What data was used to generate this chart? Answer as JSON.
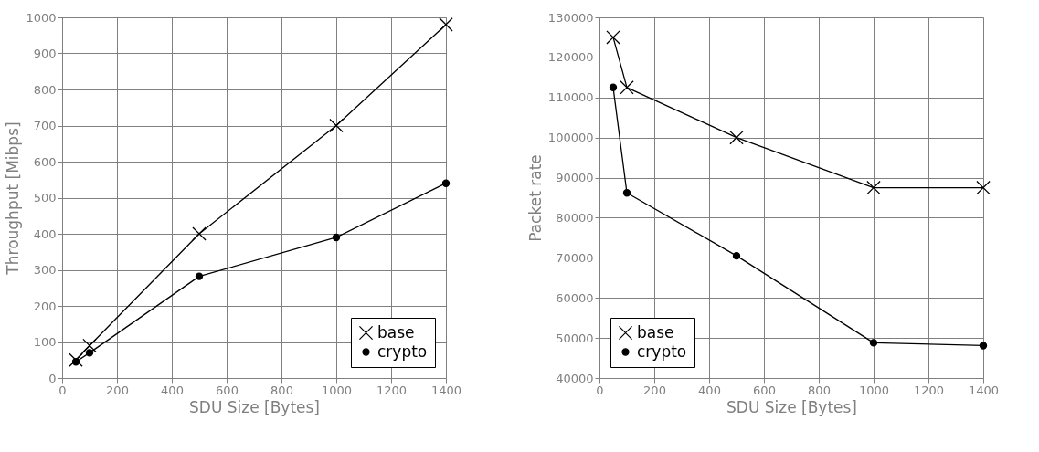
{
  "chart_data": [
    {
      "type": "line",
      "xlabel": "SDU Size [Bytes]",
      "ylabel": "Throughput [Mibps]",
      "x": [
        50,
        100,
        500,
        1000,
        1400
      ],
      "xlim": [
        0,
        1400
      ],
      "xticks": [
        0,
        200,
        400,
        600,
        800,
        1000,
        1200,
        1400
      ],
      "ylim": [
        0,
        1000
      ],
      "yticks": [
        0,
        100,
        200,
        300,
        400,
        500,
        600,
        700,
        800,
        900,
        1000
      ],
      "grid": true,
      "legend": "bottom right",
      "line_style": "solid",
      "series": [
        {
          "name": "base",
          "color": "#000000",
          "marker": "cross",
          "values": [
            50,
            90,
            400,
            700,
            980
          ]
        },
        {
          "name": "crypto",
          "color": "#000000",
          "marker": "circle",
          "values": [
            45,
            70,
            282,
            390,
            540
          ]
        }
      ]
    },
    {
      "type": "line",
      "xlabel": "SDU Size [Bytes]",
      "ylabel": "Packet rate",
      "x": [
        50,
        100,
        500,
        1000,
        1400
      ],
      "xlim": [
        0,
        1400
      ],
      "xticks": [
        0,
        200,
        400,
        600,
        800,
        1000,
        1200,
        1400
      ],
      "ylim": [
        40000,
        130000
      ],
      "yticks": [
        40000,
        50000,
        60000,
        70000,
        80000,
        90000,
        100000,
        110000,
        120000,
        130000
      ],
      "grid": true,
      "legend": "bottom left",
      "line_style": "solid",
      "series": [
        {
          "name": "base",
          "color": "#000000",
          "marker": "cross",
          "values": [
            125000,
            112500,
            100000,
            87500,
            87500
          ]
        },
        {
          "name": "crypto",
          "color": "#000000",
          "marker": "circle",
          "values": [
            112500,
            86200,
            70500,
            48800,
            48100
          ]
        }
      ]
    }
  ]
}
